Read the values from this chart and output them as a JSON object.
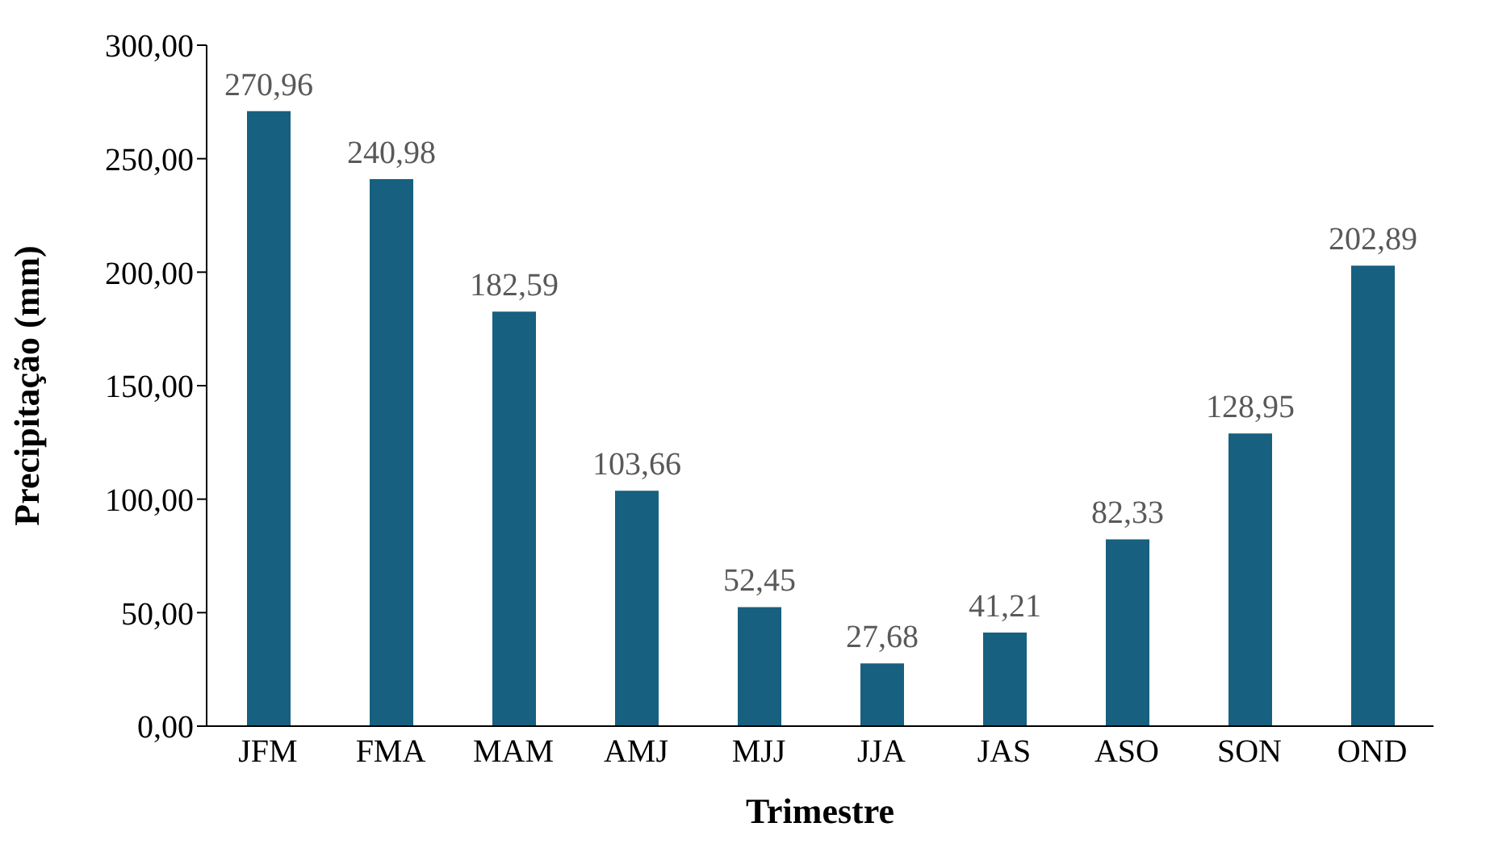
{
  "chart_data": {
    "type": "bar",
    "xlabel": "Trimestre",
    "ylabel": "Precipitação (mm)",
    "categories": [
      "JFM",
      "FMA",
      "MAM",
      "AMJ",
      "MJJ",
      "JJA",
      "JAS",
      "ASO",
      "SON",
      "OND"
    ],
    "values": [
      270.96,
      240.98,
      182.59,
      103.66,
      52.45,
      27.68,
      41.21,
      82.33,
      128.95,
      202.89
    ],
    "value_labels": [
      "270,96",
      "240,98",
      "182,59",
      "103,66",
      "52,45",
      "27,68",
      "41,21",
      "82,33",
      "128,95",
      "202,89"
    ],
    "color": "#17607f",
    "ylim": [
      0,
      300
    ],
    "yticks": [
      {
        "value": 0,
        "label": "0,00"
      },
      {
        "value": 50,
        "label": "50,00"
      },
      {
        "value": 100,
        "label": "100,00"
      },
      {
        "value": 150,
        "label": "150,00"
      },
      {
        "value": 200,
        "label": "200,00"
      },
      {
        "value": 250,
        "label": "250,00"
      },
      {
        "value": 300,
        "label": "300,00"
      }
    ]
  }
}
